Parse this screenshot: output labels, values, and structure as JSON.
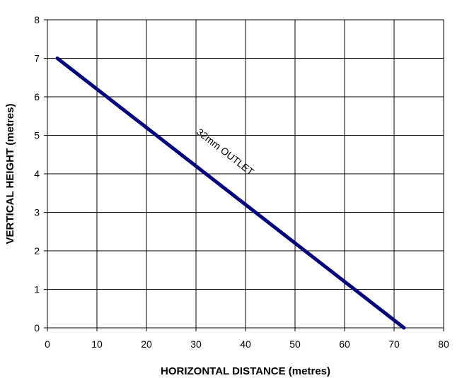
{
  "chart_data": {
    "type": "line",
    "title": "",
    "xlabel": "HORIZONTAL DISTANCE (metres)",
    "ylabel": "VERTICAL HEIGHT (metres)",
    "xlim": [
      0,
      80
    ],
    "ylim": [
      0,
      8
    ],
    "xticks": [
      "0",
      "10",
      "20",
      "30",
      "40",
      "50",
      "60",
      "70",
      "80"
    ],
    "yticks": [
      "0",
      "1",
      "2",
      "3",
      "4",
      "5",
      "6",
      "7",
      "8"
    ],
    "grid": true,
    "series": [
      {
        "name": "32mm OUTLET",
        "x": [
          2,
          72
        ],
        "y": [
          7,
          0
        ],
        "color": "#00007f"
      }
    ],
    "annotations": [
      {
        "text": "32mm OUTLET",
        "x": 35.5,
        "y": 4.5
      }
    ]
  }
}
